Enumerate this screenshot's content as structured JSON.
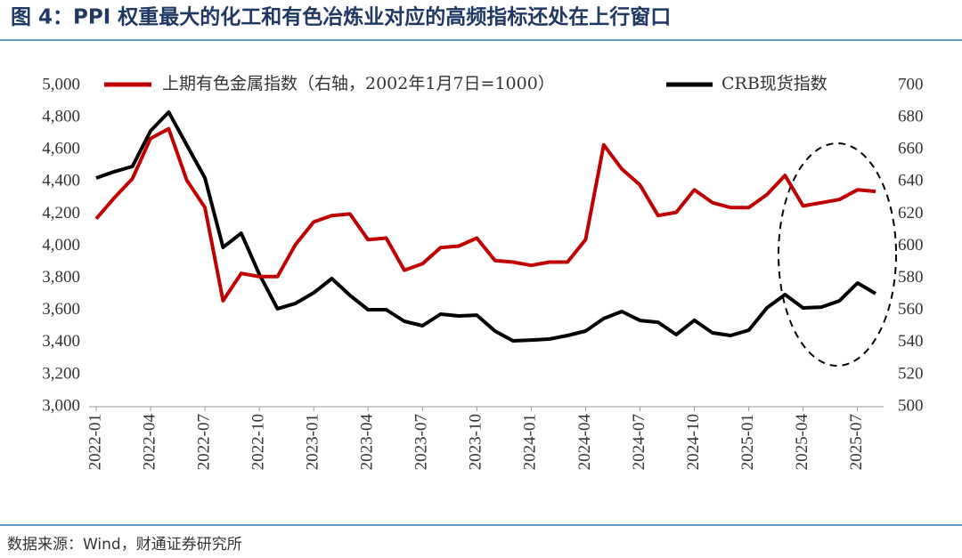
{
  "chart_data": {
    "type": "line",
    "title": "图 4：PPI 权重最大的化工和有色冶炼业对应的高频指标还处在上行窗口",
    "source": "数据来源：Wind，财通证券研究所",
    "categories": [
      "2022-01",
      null,
      null,
      "2022-04",
      null,
      null,
      "2022-07",
      null,
      null,
      "2022-10",
      null,
      null,
      "2023-01",
      null,
      null,
      "2023-04",
      null,
      null,
      "2023-07",
      null,
      null,
      "2023-10",
      null,
      null,
      "2024-01",
      null,
      null,
      "2024-04",
      null,
      null,
      "2024-07",
      null,
      null,
      "2024-10",
      null,
      null,
      "2025-01",
      null,
      null,
      "2025-04",
      null,
      null,
      "2025-07",
      null
    ],
    "series": [
      {
        "name": "上期有色金属指数（右轴，2002年1月7日=1000）",
        "color": "#c00000",
        "axis": "y2",
        "values": [
          617,
          630,
          642,
          667,
          673,
          641,
          624,
          566,
          583,
          581,
          581,
          601,
          615,
          619,
          620,
          604,
          605,
          585,
          589,
          599,
          600,
          605,
          591,
          590,
          588,
          590,
          590,
          604,
          663,
          648,
          638,
          619,
          621,
          635,
          627,
          624,
          624,
          632,
          644,
          625,
          627,
          629,
          635,
          634
        ]
      },
      {
        "name": "CRB现货指数",
        "color": "#000000",
        "values": [
          4424,
          4463,
          4496,
          4717,
          4834,
          4629,
          4424,
          3992,
          4080,
          3825,
          3610,
          3643,
          3709,
          3798,
          3693,
          3604,
          3604,
          3532,
          3504,
          3576,
          3565,
          3570,
          3471,
          3410,
          3415,
          3421,
          3443,
          3471,
          3549,
          3593,
          3537,
          3526,
          3449,
          3538,
          3460,
          3443,
          3476,
          3615,
          3698,
          3615,
          3620,
          3659,
          3770,
          3704
        ]
      }
    ],
    "ylim": [
      3000,
      5000
    ],
    "yticks": [
      {
        "value": 3000,
        "label": "3,000"
      },
      {
        "value": 3200,
        "label": "3,200"
      },
      {
        "value": 3400,
        "label": "3,400"
      },
      {
        "value": 3600,
        "label": "3,600"
      },
      {
        "value": 3800,
        "label": "3,800"
      },
      {
        "value": 4000,
        "label": "4,000"
      },
      {
        "value": 4200,
        "label": "4,200"
      },
      {
        "value": 4400,
        "label": "4,400"
      },
      {
        "value": 4600,
        "label": "4,600"
      },
      {
        "value": 4800,
        "label": "4,800"
      },
      {
        "value": 5000,
        "label": "5,000"
      }
    ],
    "y2lim": [
      500,
      700
    ],
    "y2ticks": [
      500,
      520,
      540,
      560,
      580,
      600,
      620,
      640,
      660,
      680,
      700
    ],
    "legend": "top"
  }
}
